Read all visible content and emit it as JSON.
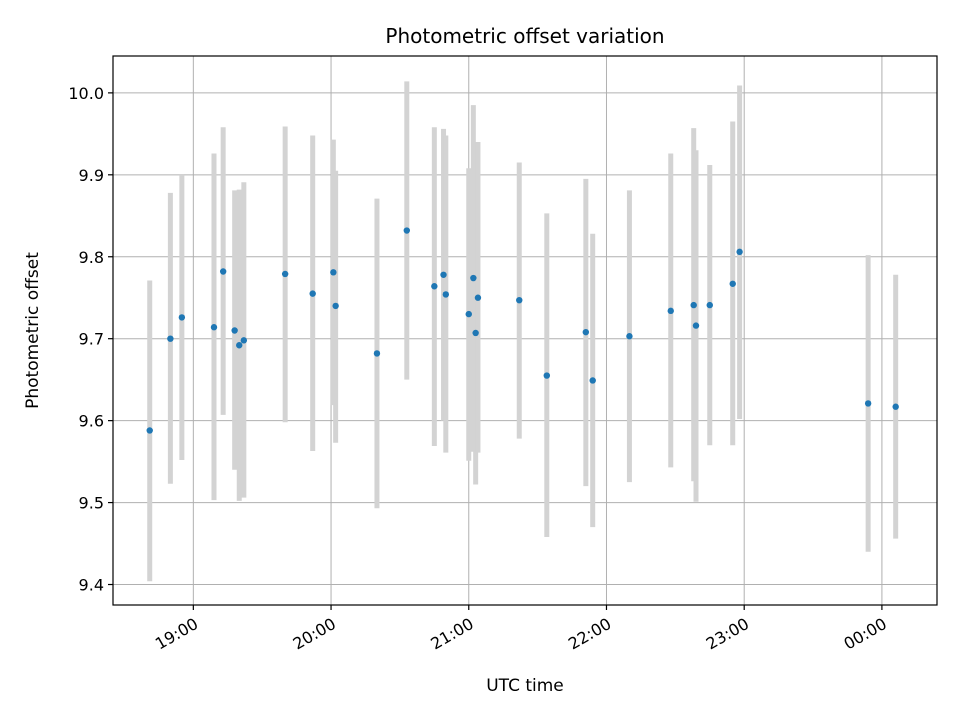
{
  "chart_data": {
    "type": "scatter",
    "title": "Photometric offset variation",
    "xlabel": "UTC time",
    "ylabel": "Photometric offset",
    "x_axis_kind": "time",
    "xlim": [
      "18:25",
      "24:24"
    ],
    "ylim": [
      9.375,
      10.045
    ],
    "grid": true,
    "xticks": [
      {
        "t": "19:00",
        "label": "19:00"
      },
      {
        "t": "20:00",
        "label": "20:00"
      },
      {
        "t": "21:00",
        "label": "21:00"
      },
      {
        "t": "22:00",
        "label": "22:00"
      },
      {
        "t": "23:00",
        "label": "23:00"
      },
      {
        "t": "24:00",
        "label": "00:00"
      }
    ],
    "yticks": [
      9.4,
      9.5,
      9.6,
      9.7,
      9.8,
      9.9,
      10.0
    ],
    "ytick_labels": [
      "9.4",
      "9.5",
      "9.6",
      "9.7",
      "9.8",
      "9.9",
      "10.0"
    ],
    "point_color": "#1f77b4",
    "errorbar_color": "#d3d3d3",
    "points": [
      {
        "t": "18:41",
        "y": 9.588,
        "lo": 9.404,
        "hi": 9.771
      },
      {
        "t": "18:50",
        "y": 9.7,
        "lo": 9.523,
        "hi": 9.878
      },
      {
        "t": "18:55",
        "y": 9.726,
        "lo": 9.552,
        "hi": 9.9
      },
      {
        "t": "19:09",
        "y": 9.714,
        "lo": 9.503,
        "hi": 9.926
      },
      {
        "t": "19:13",
        "y": 9.782,
        "lo": 9.607,
        "hi": 9.958
      },
      {
        "t": "19:18",
        "y": 9.71,
        "lo": 9.54,
        "hi": 9.881
      },
      {
        "t": "19:20",
        "y": 9.692,
        "lo": 9.502,
        "hi": 9.882
      },
      {
        "t": "19:22",
        "y": 9.698,
        "lo": 9.506,
        "hi": 9.891
      },
      {
        "t": "19:40",
        "y": 9.779,
        "lo": 9.598,
        "hi": 9.959
      },
      {
        "t": "19:52",
        "y": 9.755,
        "lo": 9.563,
        "hi": 9.948
      },
      {
        "t": "20:01",
        "y": 9.781,
        "lo": 9.619,
        "hi": 9.943
      },
      {
        "t": "20:02",
        "y": 9.74,
        "lo": 9.573,
        "hi": 9.905
      },
      {
        "t": "20:20",
        "y": 9.682,
        "lo": 9.493,
        "hi": 9.871
      },
      {
        "t": "20:33",
        "y": 9.832,
        "lo": 9.65,
        "hi": 10.014
      },
      {
        "t": "20:45",
        "y": 9.764,
        "lo": 9.569,
        "hi": 9.958
      },
      {
        "t": "20:49",
        "y": 9.778,
        "lo": 9.6,
        "hi": 9.956
      },
      {
        "t": "20:50",
        "y": 9.754,
        "lo": 9.561,
        "hi": 9.948
      },
      {
        "t": "21:00",
        "y": 9.73,
        "lo": 9.551,
        "hi": 9.908
      },
      {
        "t": "21:02",
        "y": 9.774,
        "lo": 9.562,
        "hi": 9.985
      },
      {
        "t": "21:03",
        "y": 9.707,
        "lo": 9.522,
        "hi": 9.891
      },
      {
        "t": "21:04",
        "y": 9.75,
        "lo": 9.561,
        "hi": 9.94
      },
      {
        "t": "21:22",
        "y": 9.747,
        "lo": 9.578,
        "hi": 9.915
      },
      {
        "t": "21:34",
        "y": 9.655,
        "lo": 9.458,
        "hi": 9.853
      },
      {
        "t": "21:51",
        "y": 9.708,
        "lo": 9.52,
        "hi": 9.895
      },
      {
        "t": "21:54",
        "y": 9.649,
        "lo": 9.47,
        "hi": 9.828
      },
      {
        "t": "22:10",
        "y": 9.703,
        "lo": 9.525,
        "hi": 9.881
      },
      {
        "t": "22:28",
        "y": 9.734,
        "lo": 9.543,
        "hi": 9.926
      },
      {
        "t": "22:38",
        "y": 9.741,
        "lo": 9.526,
        "hi": 9.957
      },
      {
        "t": "22:39",
        "y": 9.716,
        "lo": 9.501,
        "hi": 9.93
      },
      {
        "t": "22:45",
        "y": 9.741,
        "lo": 9.57,
        "hi": 9.912
      },
      {
        "t": "22:55",
        "y": 9.767,
        "lo": 9.57,
        "hi": 9.965
      },
      {
        "t": "22:58",
        "y": 9.806,
        "lo": 9.602,
        "hi": 10.009
      },
      {
        "t": "23:54",
        "y": 9.621,
        "lo": 9.44,
        "hi": 9.802
      },
      {
        "t": "24:06",
        "y": 9.617,
        "lo": 9.456,
        "hi": 9.778
      }
    ]
  }
}
